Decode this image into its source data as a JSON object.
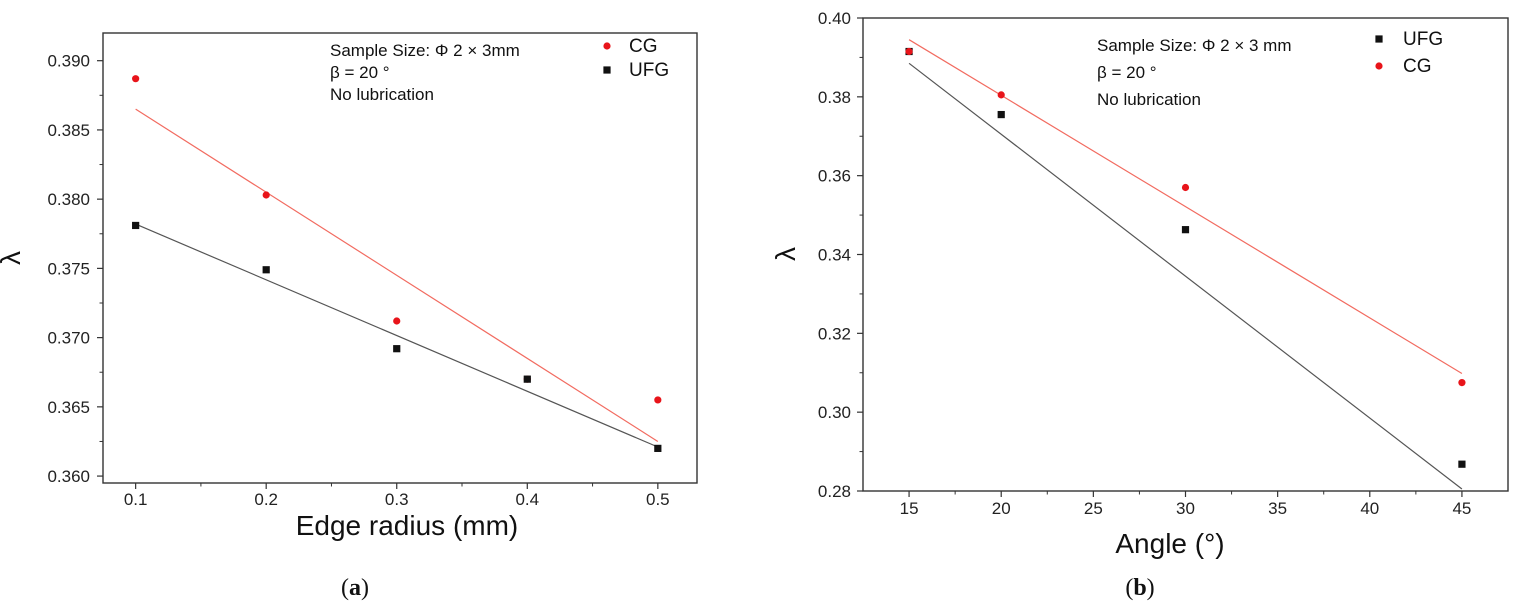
{
  "chart_data": [
    {
      "type": "scatter",
      "panel_label": {
        "open": "(",
        "letter": "a",
        "close": ")"
      },
      "xlabel": "Edge radius (mm)",
      "ylabel": "λ",
      "xlim": [
        0.075,
        0.53
      ],
      "ylim": [
        0.3595,
        0.392
      ],
      "xticks": [
        0.1,
        0.2,
        0.3,
        0.4,
        0.5
      ],
      "xtick_labels": [
        "0.1",
        "0.2",
        "0.3",
        "0.4",
        "0.5"
      ],
      "yticks": [
        0.36,
        0.365,
        0.37,
        0.375,
        0.38,
        0.385,
        0.39
      ],
      "ytick_labels": [
        "0.360",
        "0.365",
        "0.370",
        "0.375",
        "0.380",
        "0.385",
        "0.390"
      ],
      "annotations": [
        "Sample Size: Φ 2 × 3mm",
        "β = 20 °",
        "No lubrication"
      ],
      "legend": [
        {
          "name": "CG",
          "marker": "circle",
          "color": "#e8141a"
        },
        {
          "name": "UFG",
          "marker": "square",
          "color": "#111111"
        }
      ],
      "series": [
        {
          "name": "CG",
          "marker": "circle",
          "color": "#e8141a",
          "line_color": "#f26b60",
          "x": [
            0.1,
            0.2,
            0.3,
            0.4,
            0.5
          ],
          "y": [
            0.3887,
            0.3803,
            0.3712,
            0.367,
            0.3655
          ],
          "fit": {
            "x": [
              0.1,
              0.5
            ],
            "y": [
              0.3865,
              0.3625
            ]
          }
        },
        {
          "name": "UFG",
          "marker": "square",
          "color": "#111111",
          "line_color": "#555555",
          "x": [
            0.1,
            0.2,
            0.3,
            0.4,
            0.5
          ],
          "y": [
            0.3781,
            0.3749,
            0.3692,
            0.367,
            0.362
          ],
          "fit": {
            "x": [
              0.1,
              0.5
            ],
            "y": [
              0.3782,
              0.3621
            ]
          }
        }
      ]
    },
    {
      "type": "scatter",
      "panel_label": {
        "open": "(",
        "letter": "b",
        "close": ")"
      },
      "xlabel": "Angle (°)",
      "ylabel": "λ",
      "xlim": [
        12.5,
        47.5
      ],
      "ylim": [
        0.28,
        0.4
      ],
      "xticks": [
        15,
        20,
        25,
        30,
        35,
        40,
        45
      ],
      "xtick_labels": [
        "15",
        "20",
        "25",
        "30",
        "35",
        "40",
        "45"
      ],
      "yticks": [
        0.28,
        0.3,
        0.32,
        0.34,
        0.36,
        0.38,
        0.4
      ],
      "ytick_labels": [
        "0.28",
        "0.30",
        "0.32",
        "0.34",
        "0.36",
        "0.38",
        "0.40"
      ],
      "annotations": [
        "Sample Size: Φ 2 × 3 mm",
        "β = 20 °",
        "No lubrication"
      ],
      "legend": [
        {
          "name": "UFG",
          "marker": "square",
          "color": "#111111"
        },
        {
          "name": "CG",
          "marker": "circle",
          "color": "#e8141a"
        }
      ],
      "series": [
        {
          "name": "UFG",
          "marker": "square",
          "color": "#111111",
          "line_color": "#555555",
          "x": [
            15,
            20,
            30,
            45
          ],
          "y": [
            0.3915,
            0.3755,
            0.3463,
            0.2868
          ],
          "fit": {
            "x": [
              15,
              45
            ],
            "y": [
              0.3885,
              0.2805
            ]
          }
        },
        {
          "name": "CG",
          "marker": "circle",
          "color": "#e8141a",
          "line_color": "#f26b60",
          "x": [
            15,
            20,
            30,
            45
          ],
          "y": [
            0.3915,
            0.3805,
            0.357,
            0.3075
          ],
          "fit": {
            "x": [
              15,
              45
            ],
            "y": [
              0.3945,
              0.3098
            ]
          }
        }
      ]
    }
  ]
}
